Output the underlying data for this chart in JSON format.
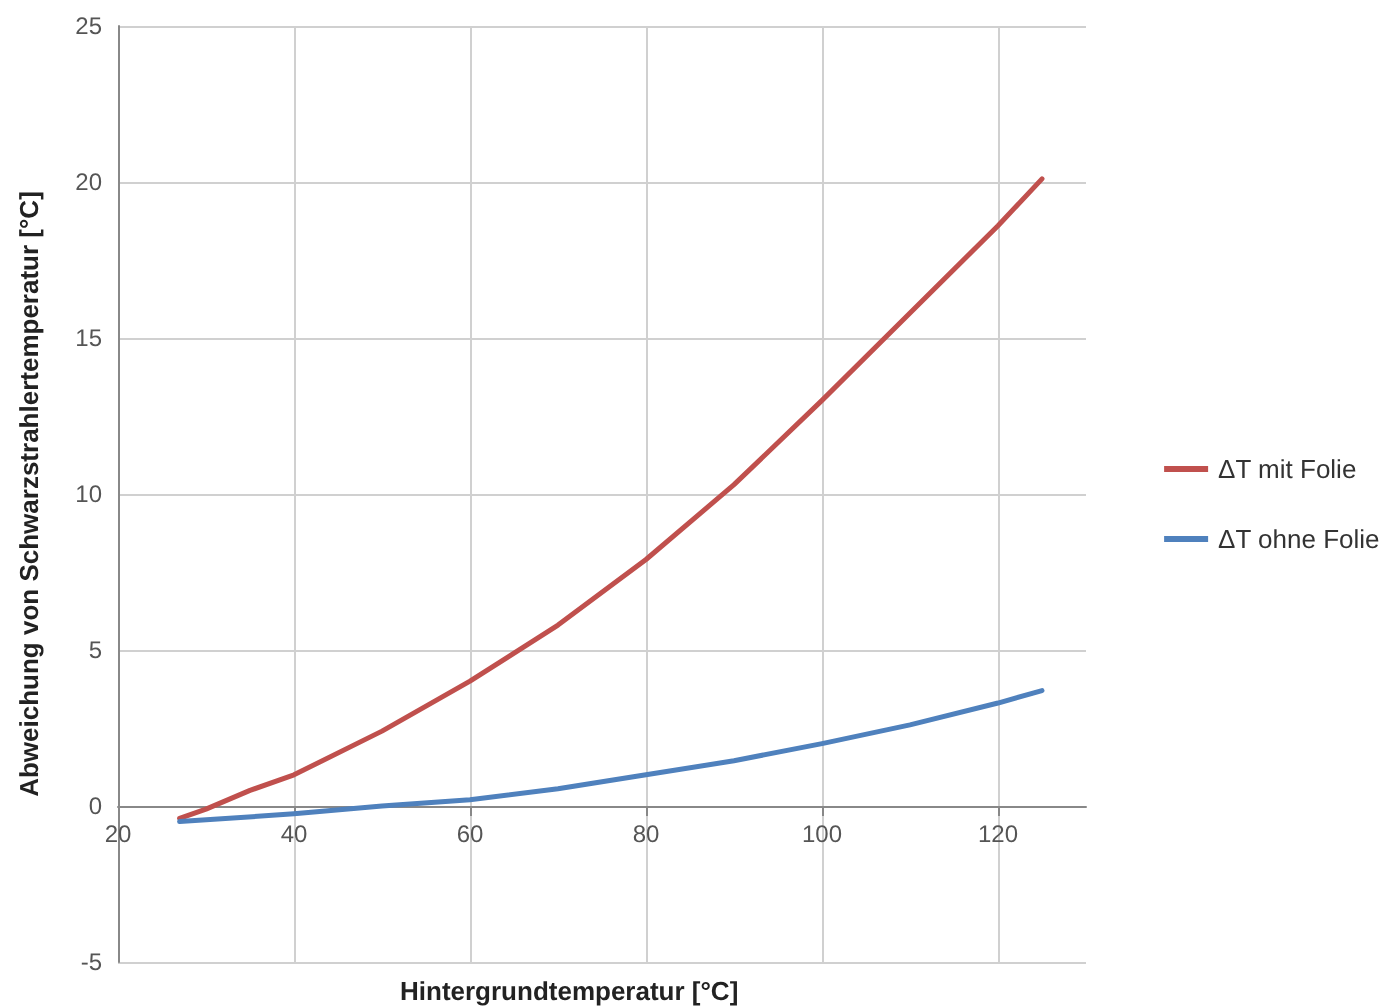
{
  "chart_data": {
    "type": "line",
    "xlabel": "Hintergrundtemperatur [°C]",
    "ylabel": "Abweichung von Schwarzstrahlertemperatur [°C]",
    "xlim": [
      20,
      130
    ],
    "xticks": [
      20,
      40,
      60,
      80,
      100,
      120
    ],
    "ylim": [
      -5,
      25
    ],
    "yticks": [
      -5,
      0,
      5,
      10,
      15,
      20,
      25
    ],
    "grid": true,
    "legend": "right",
    "marker": "none",
    "line_style": "solid",
    "series": [
      {
        "name": "ΔT mit Folie",
        "color": "#c0504d",
        "x": [
          27,
          30,
          35,
          40,
          50,
          60,
          70,
          80,
          90,
          100,
          110,
          120,
          125
        ],
        "values": [
          -0.4,
          -0.1,
          0.5,
          1.0,
          2.4,
          4.0,
          5.8,
          7.9,
          10.3,
          13.0,
          15.8,
          18.6,
          20.1
        ]
      },
      {
        "name": "ΔT ohne Folie",
        "color": "#4f81bd",
        "x": [
          27,
          40,
          50,
          60,
          70,
          80,
          90,
          100,
          110,
          120,
          125
        ],
        "values": [
          -0.5,
          -0.25,
          0,
          0.2,
          0.55,
          1.0,
          1.45,
          2.0,
          2.6,
          3.3,
          3.7
        ]
      }
    ]
  }
}
